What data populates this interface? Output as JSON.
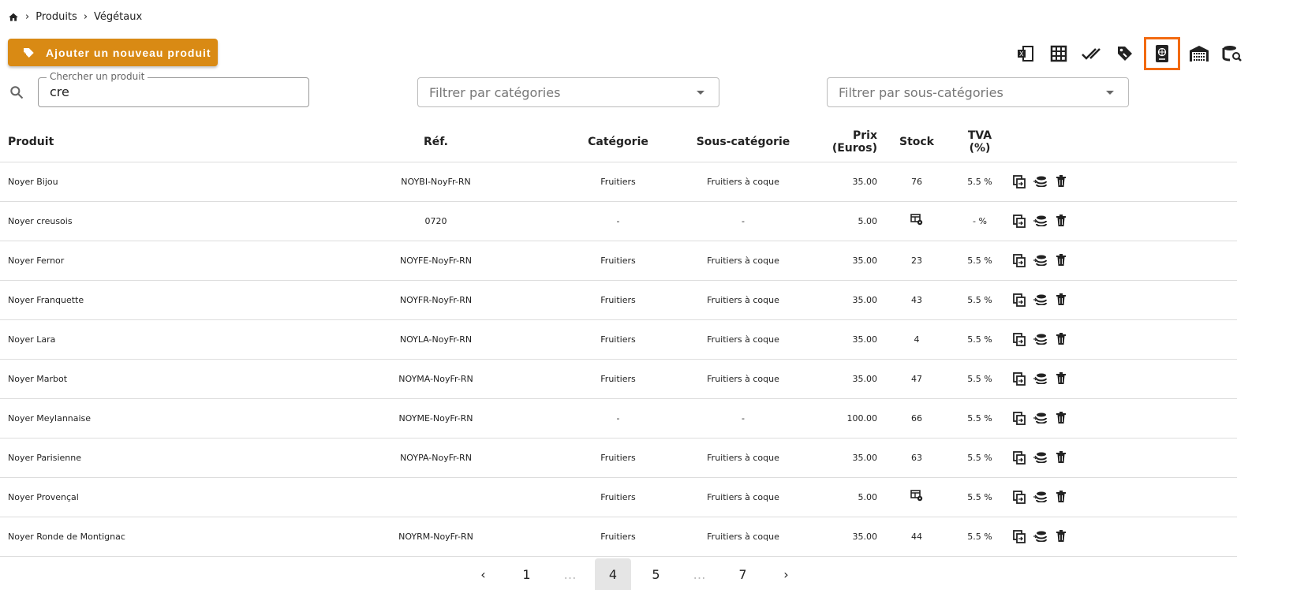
{
  "breadcrumb": {
    "items": [
      "Produits",
      "Végétaux"
    ]
  },
  "add_button": {
    "label": "Ajouter un nouveau produit"
  },
  "accent": "#d98a14",
  "toolbar": {
    "icons": [
      "excel-icon",
      "table-icon",
      "done-all-icon",
      "tag-icon",
      "passport-icon",
      "warehouse-icon",
      "database-search-icon"
    ],
    "active": "passport-icon",
    "active_color": "#f26a10"
  },
  "search": {
    "label": "Chercher un produit",
    "value": "cre"
  },
  "filters": {
    "categories_placeholder": "Filtrer par catégories",
    "subcategories_placeholder": "Filtrer par sous-catégories"
  },
  "table": {
    "headers": [
      "Produit",
      "Réf.",
      "Catégorie",
      "Sous-catégorie",
      "Prix\n(Euros)",
      "Stock",
      "TVA\n(%)"
    ],
    "rows": [
      {
        "produit": "Noyer Bijou",
        "ref": "NOYBI-NoyFr-RN",
        "cat": "Fruitiers",
        "subcat": "Fruitiers à coque",
        "prix": "35.00",
        "stock": "76",
        "tva": "5.5 %"
      },
      {
        "produit": "Noyer creusois",
        "ref": "0720",
        "cat": "-",
        "subcat": "-",
        "prix": "5.00",
        "stock": "",
        "tva": "- %"
      },
      {
        "produit": "Noyer Fernor",
        "ref": "NOYFE-NoyFr-RN",
        "cat": "Fruitiers",
        "subcat": "Fruitiers à coque",
        "prix": "35.00",
        "stock": "23",
        "tva": "5.5 %"
      },
      {
        "produit": "Noyer Franquette",
        "ref": "NOYFR-NoyFr-RN",
        "cat": "Fruitiers",
        "subcat": "Fruitiers à coque",
        "prix": "35.00",
        "stock": "43",
        "tva": "5.5 %"
      },
      {
        "produit": "Noyer Lara",
        "ref": "NOYLA-NoyFr-RN",
        "cat": "Fruitiers",
        "subcat": "Fruitiers à coque",
        "prix": "35.00",
        "stock": "4",
        "tva": "5.5 %"
      },
      {
        "produit": "Noyer Marbot",
        "ref": "NOYMA-NoyFr-RN",
        "cat": "Fruitiers",
        "subcat": "Fruitiers à coque",
        "prix": "35.00",
        "stock": "47",
        "tva": "5.5 %"
      },
      {
        "produit": "Noyer Meylannaise",
        "ref": "NOYME-NoyFr-RN",
        "cat": "-",
        "subcat": "-",
        "prix": "100.00",
        "stock": "66",
        "tva": "5.5 %"
      },
      {
        "produit": "Noyer Parisienne",
        "ref": "NOYPA-NoyFr-RN",
        "cat": "Fruitiers",
        "subcat": "Fruitiers à coque",
        "prix": "35.00",
        "stock": "63",
        "tva": "5.5 %"
      },
      {
        "produit": "Noyer Provençal",
        "ref": "",
        "cat": "Fruitiers",
        "subcat": "Fruitiers à coque",
        "prix": "5.00",
        "stock": "",
        "tva": "5.5 %"
      },
      {
        "produit": "Noyer Ronde de Montignac",
        "ref": "NOYRM-NoyFr-RN",
        "cat": "Fruitiers",
        "subcat": "Fruitiers à coque",
        "prix": "35.00",
        "stock": "44",
        "tva": "5.5 %"
      }
    ]
  },
  "pagination": {
    "pages": [
      "1",
      "…",
      "4",
      "5",
      "…",
      "7"
    ],
    "current": "4"
  }
}
